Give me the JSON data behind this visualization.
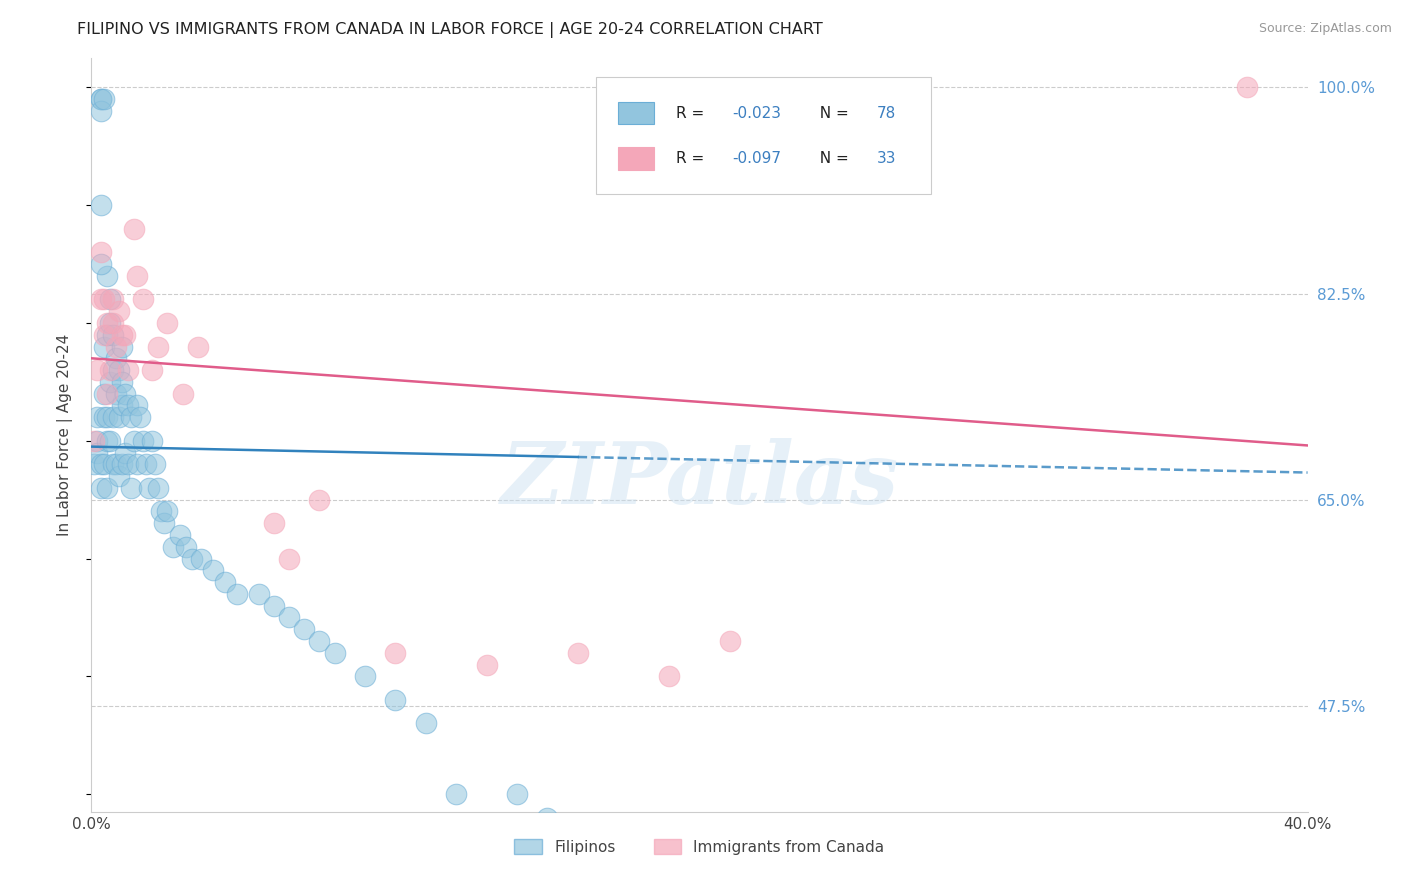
{
  "title": "FILIPINO VS IMMIGRANTS FROM CANADA IN LABOR FORCE | AGE 20-24 CORRELATION CHART",
  "source": "Source: ZipAtlas.com",
  "ylabel": "In Labor Force | Age 20-24",
  "xlim": [
    0.0,
    0.4
  ],
  "ylim": [
    0.385,
    1.025
  ],
  "xticks": [
    0.0,
    0.1,
    0.2,
    0.3,
    0.4
  ],
  "xtick_labels": [
    "0.0%",
    "",
    "",
    "",
    "40.0%"
  ],
  "ytick_positions_right": [
    1.0,
    0.825,
    0.65,
    0.475
  ],
  "ytick_labels_right": [
    "100.0%",
    "82.5%",
    "65.0%",
    "47.5%"
  ],
  "legend_r_blue": "-0.023",
  "legend_n_blue": "78",
  "legend_r_pink": "-0.097",
  "legend_n_pink": "33",
  "blue_color": "#92c5de",
  "pink_color": "#f4a7b9",
  "blue_edge_color": "#6baed6",
  "pink_edge_color": "#f4a7b9",
  "blue_line_color": "#3182bd",
  "pink_line_color": "#e05c8a",
  "blue_line_solid_end": 0.16,
  "blue_line_intercept": 0.695,
  "blue_line_slope": -0.055,
  "pink_line_intercept": 0.77,
  "pink_line_slope": -0.185,
  "watermark": "ZIPatlas",
  "grid_color": "#cccccc",
  "bg_color": "#ffffff",
  "blue_scatter_x": [
    0.001,
    0.002,
    0.002,
    0.002,
    0.003,
    0.003,
    0.003,
    0.003,
    0.003,
    0.004,
    0.004,
    0.004,
    0.004,
    0.004,
    0.005,
    0.005,
    0.005,
    0.005,
    0.005,
    0.006,
    0.006,
    0.006,
    0.006,
    0.007,
    0.007,
    0.007,
    0.007,
    0.008,
    0.008,
    0.008,
    0.009,
    0.009,
    0.009,
    0.01,
    0.01,
    0.01,
    0.01,
    0.011,
    0.011,
    0.012,
    0.012,
    0.013,
    0.013,
    0.014,
    0.015,
    0.015,
    0.016,
    0.017,
    0.018,
    0.019,
    0.02,
    0.021,
    0.022,
    0.023,
    0.024,
    0.025,
    0.027,
    0.029,
    0.031,
    0.033,
    0.036,
    0.04,
    0.044,
    0.048,
    0.055,
    0.06,
    0.065,
    0.07,
    0.075,
    0.08,
    0.09,
    0.1,
    0.11,
    0.12,
    0.14,
    0.15,
    0.003,
    0.003
  ],
  "blue_scatter_y": [
    0.68,
    0.7,
    0.69,
    0.72,
    0.99,
    0.99,
    0.98,
    0.68,
    0.66,
    0.99,
    0.78,
    0.74,
    0.72,
    0.68,
    0.84,
    0.79,
    0.72,
    0.7,
    0.66,
    0.82,
    0.8,
    0.75,
    0.7,
    0.79,
    0.76,
    0.72,
    0.68,
    0.77,
    0.74,
    0.68,
    0.76,
    0.72,
    0.67,
    0.78,
    0.75,
    0.73,
    0.68,
    0.74,
    0.69,
    0.73,
    0.68,
    0.72,
    0.66,
    0.7,
    0.73,
    0.68,
    0.72,
    0.7,
    0.68,
    0.66,
    0.7,
    0.68,
    0.66,
    0.64,
    0.63,
    0.64,
    0.61,
    0.62,
    0.61,
    0.6,
    0.6,
    0.59,
    0.58,
    0.57,
    0.57,
    0.56,
    0.55,
    0.54,
    0.53,
    0.52,
    0.5,
    0.48,
    0.46,
    0.4,
    0.4,
    0.38,
    0.9,
    0.85
  ],
  "pink_scatter_x": [
    0.001,
    0.002,
    0.003,
    0.003,
    0.004,
    0.004,
    0.005,
    0.005,
    0.006,
    0.007,
    0.007,
    0.008,
    0.009,
    0.01,
    0.011,
    0.012,
    0.014,
    0.015,
    0.017,
    0.02,
    0.022,
    0.025,
    0.03,
    0.035,
    0.06,
    0.065,
    0.075,
    0.1,
    0.13,
    0.16,
    0.19,
    0.21,
    0.38
  ],
  "pink_scatter_y": [
    0.7,
    0.76,
    0.86,
    0.82,
    0.82,
    0.79,
    0.8,
    0.74,
    0.76,
    0.82,
    0.8,
    0.78,
    0.81,
    0.79,
    0.79,
    0.76,
    0.88,
    0.84,
    0.82,
    0.76,
    0.78,
    0.8,
    0.74,
    0.78,
    0.63,
    0.6,
    0.65,
    0.52,
    0.51,
    0.52,
    0.5,
    0.53,
    1.0
  ]
}
